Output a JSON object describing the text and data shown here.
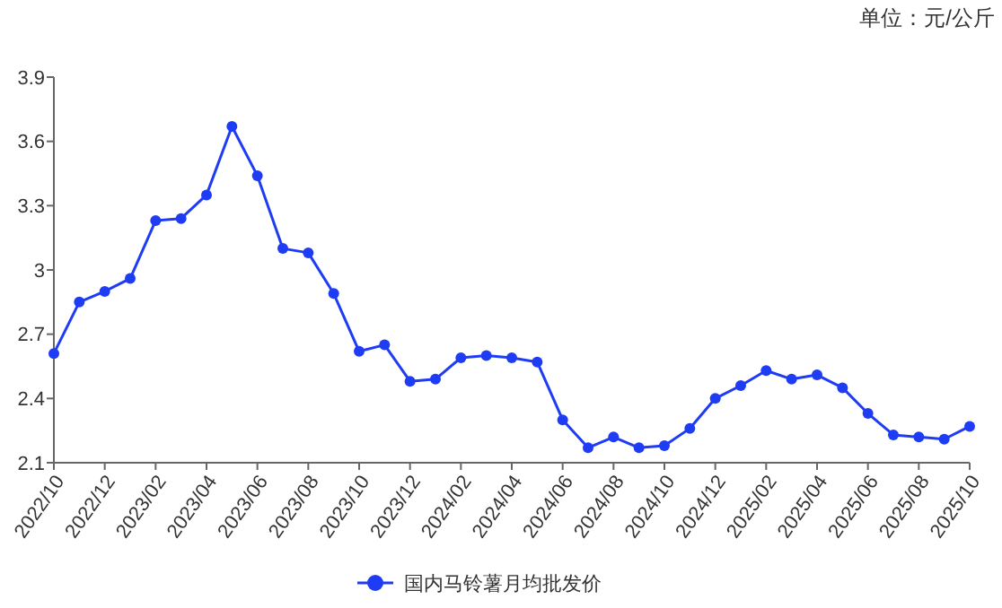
{
  "chart_data": {
    "type": "line",
    "annotations": [
      "单位：元/公斤"
    ],
    "categories": [
      "2022/10",
      null,
      "2022/12",
      null,
      "2023/02",
      null,
      "2023/04",
      null,
      "2023/06",
      null,
      "2023/08",
      null,
      "2023/10",
      null,
      "2023/12",
      null,
      "2024/02",
      null,
      "2024/04",
      null,
      "2024/06",
      null,
      "2024/08",
      null,
      "2024/10",
      null,
      "2024/12",
      null,
      "2025/02",
      null,
      "2025/04",
      null,
      "2025/06",
      null,
      "2025/08",
      null,
      "2025/10"
    ],
    "series": [
      {
        "name": "国内马铃薯月均批发价",
        "color": "#1f3cf5",
        "values": [
          2.61,
          2.85,
          2.9,
          2.96,
          3.23,
          3.24,
          3.35,
          3.67,
          3.44,
          3.1,
          3.08,
          2.89,
          2.62,
          2.65,
          2.48,
          2.49,
          2.59,
          2.6,
          2.59,
          2.57,
          2.3,
          2.17,
          2.22,
          2.17,
          2.18,
          2.26,
          2.4,
          2.46,
          2.53,
          2.49,
          2.51,
          2.45,
          2.33,
          2.23,
          2.22,
          2.21,
          2.27
        ]
      }
    ],
    "ylim": [
      2.1,
      3.9
    ],
    "yticks": [
      2.1,
      2.4,
      2.7,
      3,
      3.3,
      3.6,
      3.9
    ],
    "grid": false,
    "legend": "bottom",
    "marker": "circle",
    "line_style": "solid"
  }
}
